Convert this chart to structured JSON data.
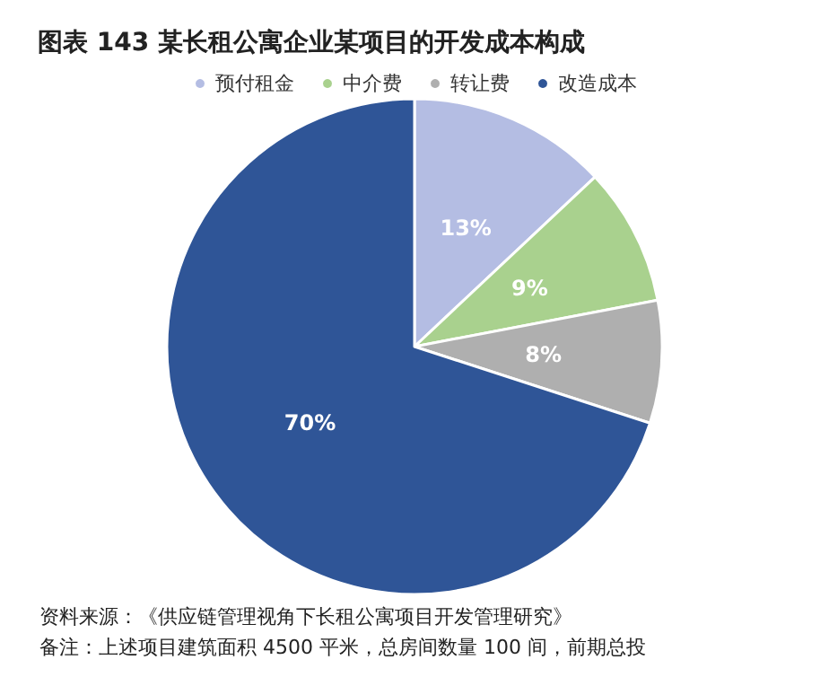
{
  "chart_data": {
    "type": "pie",
    "title": "图表 143 某长租公寓企业某项目的开发成本构成",
    "categories": [
      "预付租金",
      "中介费",
      "转让费",
      "改造成本"
    ],
    "values": [
      13,
      9,
      8,
      70
    ],
    "colors": [
      "#b4bde3",
      "#a9d18e",
      "#afafaf",
      "#2f5597"
    ],
    "value_labels": [
      "13%",
      "9%",
      "8%",
      "70%"
    ],
    "legend": "top",
    "annotations": [
      "资料来源：《供应链管理视角下长租公寓项目开发管理研究》",
      "备注：上述项目建筑面积 4500 平米，总房间数量 100 间，前期总投"
    ]
  }
}
